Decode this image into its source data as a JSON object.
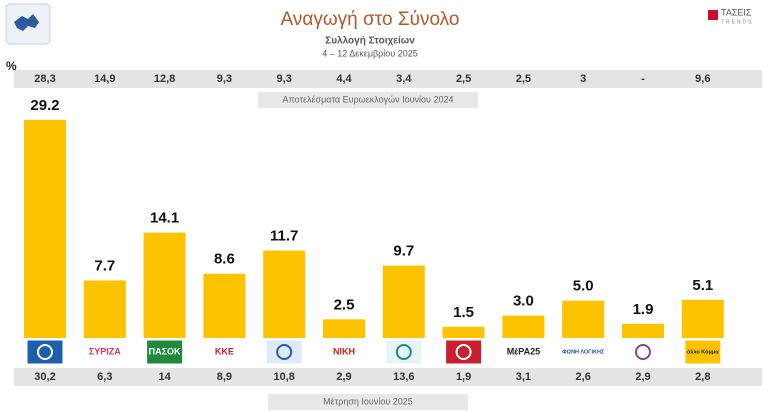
{
  "chart_data": {
    "type": "bar",
    "title": "Αναγωγή στο Σύνολο",
    "subtitle": "Συλλογή Στοιχείων",
    "date_range": "4 – 12 Δεκεμβρίου 2025",
    "unit": "%",
    "brand": {
      "name": "ΤΑΣΕΙΣ",
      "tagline": "TRENDS"
    },
    "categories": [
      null,
      "ΣΥΡΙΖΑ",
      "ΠΑΣΟΚ",
      "ΚΚΕ",
      null,
      "ΝΙΚΗ",
      null,
      null,
      "ΜέΡΑ25",
      "ΦΩΝΗ ΛΟΓΙΚΗΣ",
      null,
      "άλλο Κόμμα"
    ],
    "values": [
      29.2,
      7.7,
      14.1,
      8.6,
      11.7,
      2.5,
      9.7,
      1.5,
      3.0,
      5.0,
      1.9,
      5.1
    ],
    "value_labels": [
      "29.2",
      "7.7",
      "14.1",
      "8.6",
      "11.7",
      "2.5",
      "9.7",
      "1.5",
      "3.0",
      "5.0",
      "1.9",
      "5.1"
    ],
    "color": "#fdc300",
    "reference_2024": {
      "label": "Αποτελέσματα Ευρωεκλογών Ιουνίου 2024",
      "values": [
        "28,3",
        "14,9",
        "12,8",
        "9,3",
        "9,3",
        "4,4",
        "3,4",
        "2,5",
        "2,5",
        "3",
        "-",
        "9,6"
      ]
    },
    "measurement_june_2025": {
      "label": "Μέτρηση Ιουνίου 2025",
      "values": [
        "30,2",
        "6,3",
        "14",
        "8,9",
        "10,8",
        "2,9",
        "13,6",
        "1,9",
        "3,1",
        "2,6",
        "2,9",
        "2,8"
      ]
    }
  }
}
